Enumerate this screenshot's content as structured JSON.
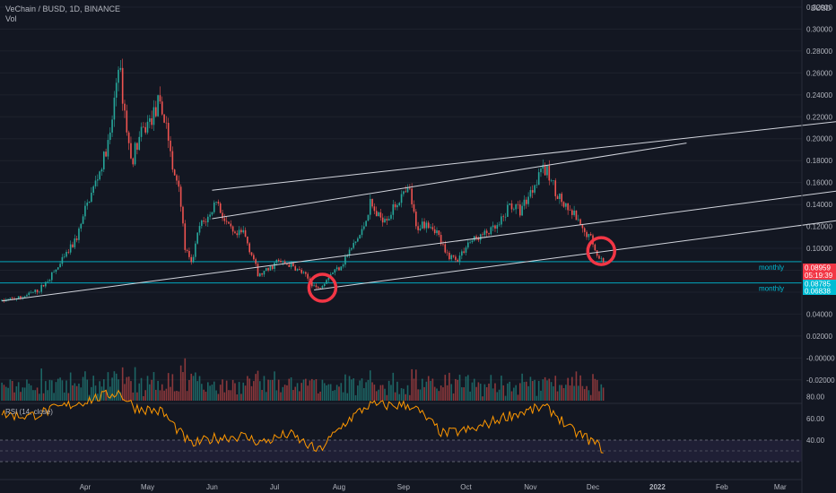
{
  "header": {
    "title": "VeChain / BUSD, 1D, BINANCE",
    "volume_label": "Vol",
    "currency": "BUSD"
  },
  "rsi": {
    "label": "RSI (14, close)",
    "ticks": [
      "80.00",
      "60.00",
      "40.00"
    ],
    "levels": [
      70,
      50,
      30
    ]
  },
  "colors": {
    "background": "#131722",
    "up": "#26a69a",
    "down": "#ef5350",
    "trendline": "#d1d4dc",
    "support": "#00bcd4",
    "circle": "#f23645",
    "rsi_line": "#ff9800",
    "rsi_band": "#7e57c2"
  },
  "badges": [
    {
      "value": "0.08959",
      "sub": "05:19:39",
      "color": "#f23645"
    },
    {
      "value": "0.08785",
      "sub": "",
      "color": "#00bcd4"
    },
    {
      "value": "0.06838",
      "sub": "",
      "color": "#00bcd4"
    }
  ],
  "levels": [
    {
      "label": "monthly",
      "price": 0.0878
    },
    {
      "label": "monthly",
      "price": 0.0684
    }
  ],
  "x_ticks": [
    "Apr",
    "May",
    "Jun",
    "Jul",
    "Aug",
    "Sep",
    "Oct",
    "Nov",
    "Dec",
    "2022",
    "Feb",
    "Mar",
    "Apr"
  ],
  "chart_data": {
    "type": "candlestick",
    "title": "VeChain / BUSD, 1D, BINANCE",
    "ylabel": "BUSD",
    "ylim": [
      -0.03,
      0.32
    ],
    "y_ticks": [
      "0.32000",
      "0.30000",
      "0.28000",
      "0.26000",
      "0.24000",
      "0.22000",
      "0.20000",
      "0.18000",
      "0.16000",
      "0.14000",
      "0.12000",
      "0.10000",
      "0.08000",
      "0.06000",
      "0.04000",
      "0.02000",
      "-0.00000",
      "-0.02000"
    ],
    "x_ticks": [
      "Apr",
      "May",
      "Jun",
      "Jul",
      "Aug",
      "Sep",
      "Oct",
      "Nov",
      "Dec",
      "2022",
      "Feb",
      "Mar",
      "Apr"
    ],
    "price_path": [
      [
        "2021-02-20",
        0.052
      ],
      [
        "2021-03-01",
        0.055
      ],
      [
        "2021-03-10",
        0.062
      ],
      [
        "2021-03-20",
        0.085
      ],
      [
        "2021-03-28",
        0.11
      ],
      [
        "2021-04-02",
        0.14
      ],
      [
        "2021-04-08",
        0.17
      ],
      [
        "2021-04-13",
        0.2
      ],
      [
        "2021-04-17",
        0.27
      ],
      [
        "2021-04-19",
        0.24
      ],
      [
        "2021-04-23",
        0.18
      ],
      [
        "2021-04-27",
        0.2
      ],
      [
        "2021-05-03",
        0.22
      ],
      [
        "2021-05-06",
        0.23
      ],
      [
        "2021-05-10",
        0.215
      ],
      [
        "2021-05-13",
        0.17
      ],
      [
        "2021-05-16",
        0.16
      ],
      [
        "2021-05-19",
        0.1
      ],
      [
        "2021-05-22",
        0.085
      ],
      [
        "2021-05-26",
        0.12
      ],
      [
        "2021-05-31",
        0.13
      ],
      [
        "2021-06-03",
        0.145
      ],
      [
        "2021-06-07",
        0.125
      ],
      [
        "2021-06-12",
        0.11
      ],
      [
        "2021-06-16",
        0.115
      ],
      [
        "2021-06-21",
        0.09
      ],
      [
        "2021-06-23",
        0.075
      ],
      [
        "2021-06-28",
        0.08
      ],
      [
        "2021-07-02",
        0.088
      ],
      [
        "2021-07-08",
        0.085
      ],
      [
        "2021-07-14",
        0.078
      ],
      [
        "2021-07-20",
        0.066
      ],
      [
        "2021-07-22",
        0.063
      ],
      [
        "2021-07-27",
        0.075
      ],
      [
        "2021-08-02",
        0.085
      ],
      [
        "2021-08-07",
        0.1
      ],
      [
        "2021-08-12",
        0.115
      ],
      [
        "2021-08-16",
        0.14
      ],
      [
        "2021-08-20",
        0.128
      ],
      [
        "2021-08-25",
        0.13
      ],
      [
        "2021-08-30",
        0.145
      ],
      [
        "2021-09-04",
        0.152
      ],
      [
        "2021-09-07",
        0.118
      ],
      [
        "2021-09-12",
        0.125
      ],
      [
        "2021-09-17",
        0.115
      ],
      [
        "2021-09-21",
        0.095
      ],
      [
        "2021-09-27",
        0.09
      ],
      [
        "2021-10-02",
        0.105
      ],
      [
        "2021-10-07",
        0.11
      ],
      [
        "2021-10-12",
        0.115
      ],
      [
        "2021-10-17",
        0.12
      ],
      [
        "2021-10-22",
        0.14
      ],
      [
        "2021-10-27",
        0.135
      ],
      [
        "2021-11-02",
        0.155
      ],
      [
        "2021-11-06",
        0.175
      ],
      [
        "2021-11-10",
        0.165
      ],
      [
        "2021-11-14",
        0.15
      ],
      [
        "2021-11-18",
        0.135
      ],
      [
        "2021-11-22",
        0.13
      ],
      [
        "2021-11-26",
        0.115
      ],
      [
        "2021-11-30",
        0.11
      ],
      [
        "2021-12-04",
        0.09
      ],
      [
        "2021-12-06",
        0.0896
      ]
    ],
    "last_price": 0.08959,
    "trendlines": [
      {
        "from": [
          "2021-06-01",
          0.153
        ],
        "to": [
          "2022-04-04",
          0.217
        ]
      },
      {
        "from": [
          "2021-06-01",
          0.127
        ],
        "to": [
          "2022-01-15",
          0.196
        ]
      },
      {
        "from": [
          "2021-02-20",
          0.052
        ],
        "to": [
          "2022-04-04",
          0.154
        ]
      },
      {
        "from": [
          "2021-07-20",
          0.062
        ],
        "to": [
          "2022-04-04",
          0.127
        ]
      }
    ],
    "circles": [
      [
        "2021-07-24",
        0.064
      ],
      [
        "2021-12-05",
        0.0975
      ]
    ],
    "rsi_values": [
      [
        "2021-02-20",
        64
      ],
      [
        "2021-03-05",
        62
      ],
      [
        "2021-03-20",
        70
      ],
      [
        "2021-04-05",
        78
      ],
      [
        "2021-04-17",
        84
      ],
      [
        "2021-04-25",
        70
      ],
      [
        "2021-05-08",
        66
      ],
      [
        "2021-05-18",
        44
      ],
      [
        "2021-05-22",
        36
      ],
      [
        "2021-06-02",
        42
      ],
      [
        "2021-06-15",
        44
      ],
      [
        "2021-06-25",
        38
      ],
      [
        "2021-07-08",
        46
      ],
      [
        "2021-07-22",
        30
      ],
      [
        "2021-08-05",
        58
      ],
      [
        "2021-08-15",
        72
      ],
      [
        "2021-09-05",
        72
      ],
      [
        "2021-09-20",
        46
      ],
      [
        "2021-10-05",
        50
      ],
      [
        "2021-10-20",
        62
      ],
      [
        "2021-11-07",
        70
      ],
      [
        "2021-11-12",
        66
      ],
      [
        "2021-11-20",
        50
      ],
      [
        "2021-11-28",
        42
      ],
      [
        "2021-12-06",
        32
      ]
    ]
  }
}
